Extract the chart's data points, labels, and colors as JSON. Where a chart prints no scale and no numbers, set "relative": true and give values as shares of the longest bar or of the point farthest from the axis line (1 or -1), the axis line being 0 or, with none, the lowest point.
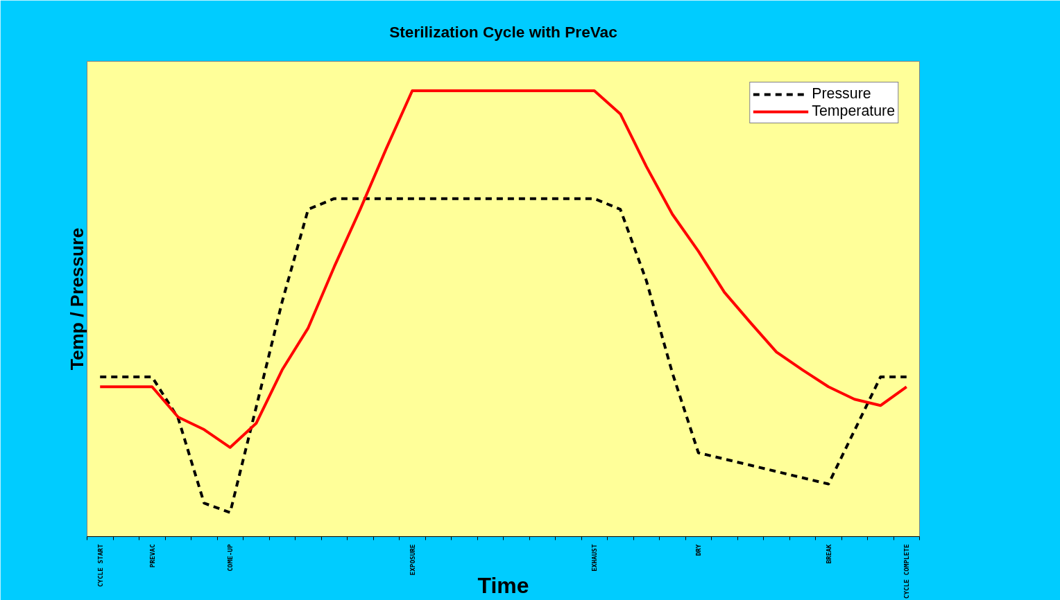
{
  "chart_data": {
    "type": "line",
    "title": "Sterilization Cycle with PreVac",
    "xlabel": "Time",
    "ylabel": "Temp / Pressure",
    "relative": true,
    "legend": "top right",
    "grid": false,
    "categories": [
      "CYCLE START",
      null,
      "PREVAC",
      null,
      null,
      "COME-UP",
      null,
      null,
      null,
      null,
      null,
      null,
      "EXPOSURE",
      null,
      null,
      null,
      null,
      null,
      null,
      "EXHAUST",
      null,
      null,
      null,
      "DRY",
      null,
      null,
      null,
      null,
      "BREAK",
      null,
      null,
      "CYCLE COMPLETE"
    ],
    "series": [
      {
        "name": "Pressure",
        "color": "#000000",
        "line_style": "dashed",
        "values": [
          0.358,
          0.358,
          0.358,
          0.266,
          0.075,
          0.054,
          0.29,
          0.527,
          0.734,
          0.758,
          0.758,
          0.758,
          0.758,
          0.758,
          0.758,
          0.758,
          0.758,
          0.758,
          0.758,
          0.758,
          0.734,
          0.574,
          0.367,
          0.188,
          0.174,
          0.16,
          0.146,
          0.132,
          0.118,
          0.238,
          0.358,
          0.358
        ]
      },
      {
        "name": "Temperature",
        "color": "#ff0000",
        "line_style": "solid",
        "values": [
          0.336,
          0.336,
          0.336,
          0.268,
          0.24,
          0.2,
          0.254,
          0.374,
          0.468,
          0.605,
          0.734,
          0.87,
          1.0,
          1.0,
          1.0,
          1.0,
          1.0,
          1.0,
          1.0,
          1.0,
          0.948,
          0.83,
          0.723,
          0.64,
          0.548,
          0.48,
          0.414,
          0.374,
          0.336,
          0.308,
          0.294,
          0.336
        ]
      }
    ]
  }
}
